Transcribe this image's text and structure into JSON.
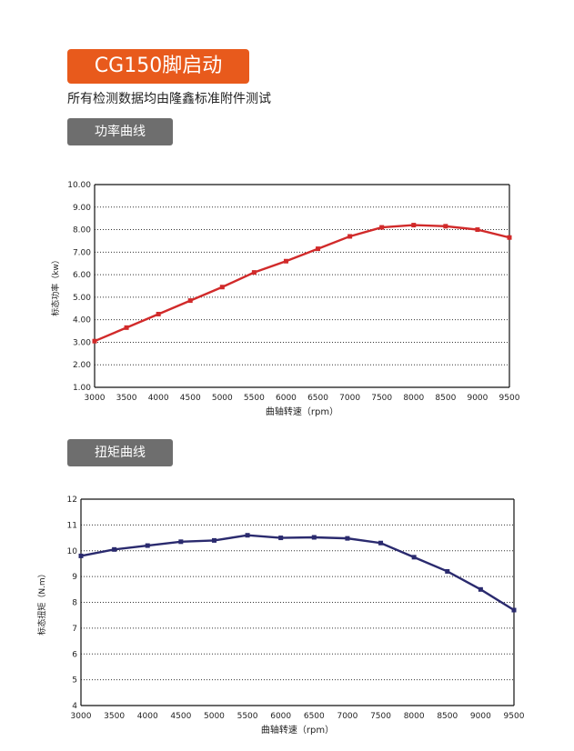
{
  "header": {
    "title": "CG150脚启动",
    "subtitle": "所有检测数据均由隆鑫标准附件测试"
  },
  "sections": [
    {
      "label": "功率曲线"
    },
    {
      "label": "扭矩曲线"
    }
  ],
  "chart_data": [
    {
      "type": "line",
      "xlabel": "曲轴转速（rpm）",
      "ylabel": "标态功率（kw）",
      "x": [
        3000,
        3500,
        4000,
        4500,
        5000,
        5500,
        6000,
        6500,
        7000,
        7500,
        8000,
        8500,
        9000,
        9500
      ],
      "x_tick_labels": [
        "3000",
        "3500",
        "4000",
        "4500",
        "5000",
        "5500",
        "6000",
        "6500",
        "7000",
        "7500",
        "8000",
        "8500",
        "9000",
        "9500"
      ],
      "y_tick_labels": [
        "1.00",
        "2.00",
        "3.00",
        "4.00",
        "5.00",
        "6.00",
        "7.00",
        "8.00",
        "9.00",
        "10.00"
      ],
      "ylim": [
        1,
        10
      ],
      "grid": "dotted-horizontal",
      "series": [
        {
          "color": "#d12a2a",
          "values": [
            3.05,
            3.65,
            4.25,
            4.85,
            5.45,
            6.1,
            6.6,
            7.15,
            7.7,
            8.1,
            8.2,
            8.15,
            8.0,
            7.65
          ]
        }
      ]
    },
    {
      "type": "line",
      "xlabel": "曲轴转速（rpm）",
      "ylabel": "标态扭矩（N.m）",
      "x": [
        3000,
        3500,
        4000,
        4500,
        5000,
        5500,
        6000,
        6500,
        7000,
        7500,
        8000,
        8500,
        9000,
        9500
      ],
      "x_tick_labels": [
        "3000",
        "3500",
        "4000",
        "4500",
        "5000",
        "5500",
        "6000",
        "6500",
        "7000",
        "7500",
        "8000",
        "8500",
        "9000",
        "9500"
      ],
      "y_tick_labels": [
        "4",
        "5",
        "6",
        "7",
        "8",
        "9",
        "10",
        "11",
        "12"
      ],
      "ylim": [
        4,
        12
      ],
      "grid": "dotted-horizontal",
      "series": [
        {
          "color": "#2a2a6e",
          "values": [
            9.8,
            10.05,
            10.2,
            10.35,
            10.4,
            10.6,
            10.5,
            10.52,
            10.48,
            10.3,
            9.75,
            9.2,
            8.5,
            7.7
          ]
        }
      ]
    }
  ]
}
